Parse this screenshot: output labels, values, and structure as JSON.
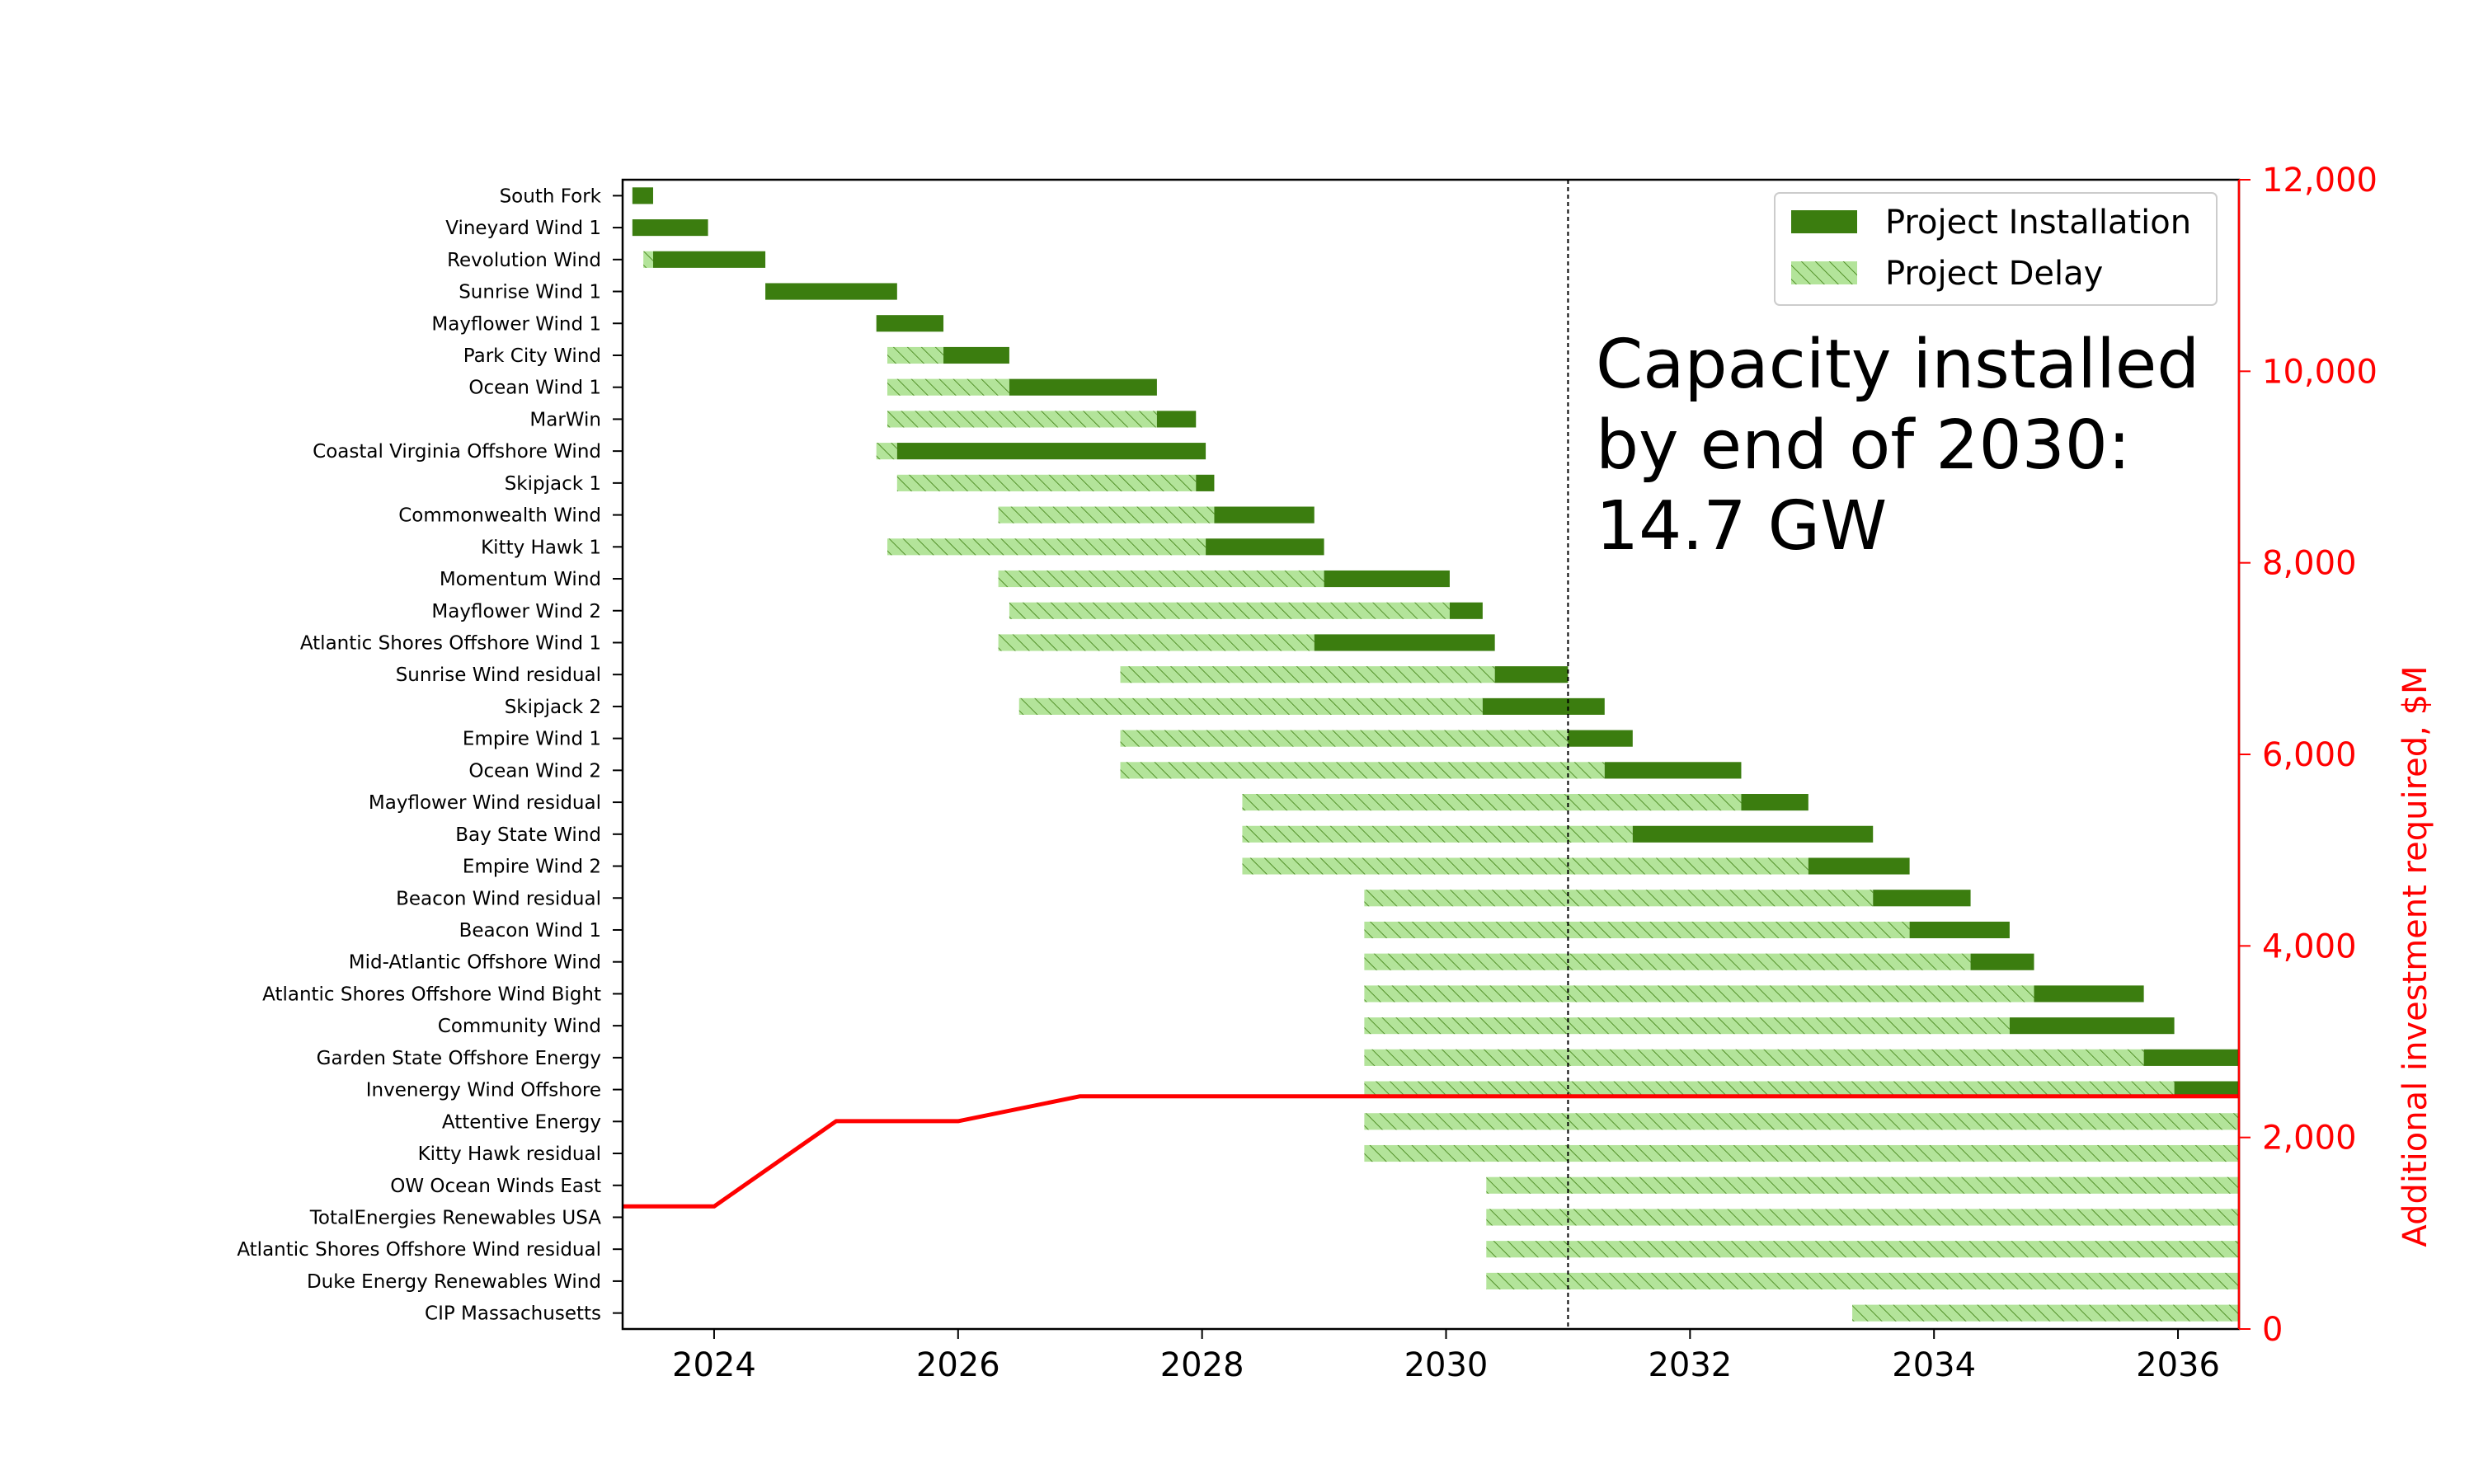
{
  "chart_data": {
    "type": "gantt-bar-with-line",
    "x_axis": {
      "min": 2023.25,
      "max": 2036.5,
      "ticks": [
        2024,
        2026,
        2028,
        2030,
        2032,
        2034,
        2036
      ],
      "tick_labels": [
        "2024",
        "2026",
        "2028",
        "2030",
        "2032",
        "2034",
        "2036"
      ]
    },
    "right_axis": {
      "label": "Additional investment required, $M",
      "min": 0,
      "max": 12000,
      "ticks": [
        0,
        2000,
        4000,
        6000,
        8000,
        10000,
        12000
      ],
      "tick_labels": [
        "0",
        "2,000",
        "4,000",
        "6,000",
        "8,000",
        "10,000",
        "12,000"
      ],
      "color": "#ff0000"
    },
    "reference_line_x": 2031.0,
    "annotation": [
      "Capacity installed",
      "by end of 2030:",
      "14.7 GW"
    ],
    "legend": {
      "placement": "top-right",
      "items": [
        {
          "label": "Project Installation",
          "kind": "install"
        },
        {
          "label": "Project Delay",
          "kind": "delay"
        }
      ]
    },
    "colors": {
      "install": "#3b7d0f",
      "delay_fill": "#b3e49a",
      "delay_hatch": "#3b7d0f",
      "investment_line": "#ff0000"
    },
    "projects": [
      {
        "name": "South Fork",
        "delay_start": null,
        "install_start": 2023.33,
        "install_end": 2023.5
      },
      {
        "name": "Vineyard Wind 1",
        "delay_start": null,
        "install_start": 2023.33,
        "install_end": 2023.95
      },
      {
        "name": "Revolution Wind",
        "delay_start": 2023.42,
        "install_start": 2023.5,
        "install_end": 2024.42
      },
      {
        "name": "Sunrise Wind 1",
        "delay_start": null,
        "install_start": 2024.42,
        "install_end": 2025.5
      },
      {
        "name": "Mayflower Wind 1",
        "delay_start": null,
        "install_start": 2025.33,
        "install_end": 2025.88
      },
      {
        "name": "Park City Wind",
        "delay_start": 2025.42,
        "install_start": 2025.88,
        "install_end": 2026.42
      },
      {
        "name": "Ocean Wind 1",
        "delay_start": 2025.42,
        "install_start": 2026.42,
        "install_end": 2027.63
      },
      {
        "name": "MarWin",
        "delay_start": 2025.42,
        "install_start": 2027.63,
        "install_end": 2027.95
      },
      {
        "name": "Coastal Virginia Offshore Wind",
        "delay_start": 2025.33,
        "install_start": 2025.5,
        "install_end": 2028.03
      },
      {
        "name": "Skipjack 1",
        "delay_start": 2025.5,
        "install_start": 2027.95,
        "install_end": 2028.1
      },
      {
        "name": "Commonwealth Wind",
        "delay_start": 2026.33,
        "install_start": 2028.1,
        "install_end": 2028.92
      },
      {
        "name": "Kitty Hawk 1",
        "delay_start": 2025.42,
        "install_start": 2028.03,
        "install_end": 2029.0
      },
      {
        "name": "Momentum Wind",
        "delay_start": 2026.33,
        "install_start": 2029.0,
        "install_end": 2030.03
      },
      {
        "name": "Mayflower Wind 2",
        "delay_start": 2026.42,
        "install_start": 2030.03,
        "install_end": 2030.3
      },
      {
        "name": "Atlantic Shores Offshore Wind 1",
        "delay_start": 2026.33,
        "install_start": 2028.92,
        "install_end": 2030.4
      },
      {
        "name": "Sunrise Wind residual",
        "delay_start": 2027.33,
        "install_start": 2030.4,
        "install_end": 2031.0
      },
      {
        "name": "Skipjack 2",
        "delay_start": 2026.5,
        "install_start": 2030.3,
        "install_end": 2031.3
      },
      {
        "name": "Empire Wind 1",
        "delay_start": 2027.33,
        "install_start": 2031.0,
        "install_end": 2031.53
      },
      {
        "name": "Ocean Wind 2",
        "delay_start": 2027.33,
        "install_start": 2031.3,
        "install_end": 2032.42
      },
      {
        "name": "Mayflower Wind residual",
        "delay_start": 2028.33,
        "install_start": 2032.42,
        "install_end": 2032.97
      },
      {
        "name": "Bay State Wind",
        "delay_start": 2028.33,
        "install_start": 2031.53,
        "install_end": 2033.5
      },
      {
        "name": "Empire Wind 2",
        "delay_start": 2028.33,
        "install_start": 2032.97,
        "install_end": 2033.8
      },
      {
        "name": "Beacon Wind residual",
        "delay_start": 2029.33,
        "install_start": 2033.5,
        "install_end": 2034.3
      },
      {
        "name": "Beacon Wind 1",
        "delay_start": 2029.33,
        "install_start": 2033.8,
        "install_end": 2034.62
      },
      {
        "name": "Mid-Atlantic Offshore Wind",
        "delay_start": 2029.33,
        "install_start": 2034.3,
        "install_end": 2034.82
      },
      {
        "name": "Atlantic Shores Offshore Wind Bight",
        "delay_start": 2029.33,
        "install_start": 2034.82,
        "install_end": 2035.72
      },
      {
        "name": "Community Wind",
        "delay_start": 2029.33,
        "install_start": 2034.62,
        "install_end": 2035.97
      },
      {
        "name": "Garden State Offshore Energy",
        "delay_start": 2029.33,
        "install_start": 2035.72,
        "install_end": 2036.5
      },
      {
        "name": "Invenergy Wind Offshore",
        "delay_start": 2029.33,
        "install_start": 2035.97,
        "install_end": 2036.5
      },
      {
        "name": "Attentive Energy",
        "delay_start": 2029.33,
        "install_start": null,
        "install_end": null
      },
      {
        "name": "Kitty Hawk residual",
        "delay_start": 2029.33,
        "install_start": null,
        "install_end": null
      },
      {
        "name": "OW Ocean Winds East",
        "delay_start": 2030.33,
        "install_start": null,
        "install_end": null
      },
      {
        "name": "TotalEnergies Renewables USA",
        "delay_start": 2030.33,
        "install_start": null,
        "install_end": null
      },
      {
        "name": "Atlantic Shores Offshore Wind residual",
        "delay_start": 2030.33,
        "install_start": null,
        "install_end": null
      },
      {
        "name": "Duke Energy Renewables Wind",
        "delay_start": 2030.33,
        "install_start": null,
        "install_end": null
      },
      {
        "name": "CIP Massachusetts",
        "delay_start": 2033.33,
        "install_start": null,
        "install_end": null
      }
    ],
    "investment_series": {
      "x": [
        2023.25,
        2024.0,
        2025.0,
        2026.0,
        2027.0,
        2036.5
      ],
      "y": [
        1280,
        1280,
        2170,
        2170,
        2430,
        2430
      ]
    }
  }
}
